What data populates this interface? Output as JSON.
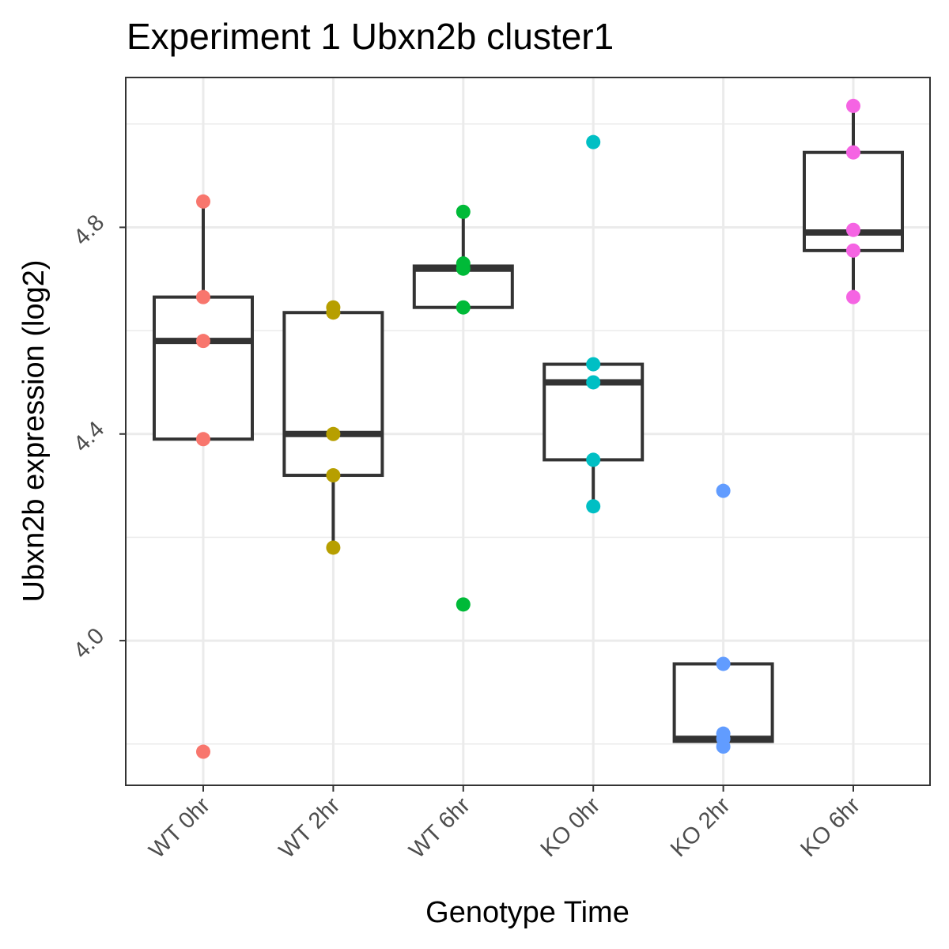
{
  "chart_data": {
    "type": "box",
    "title": "Experiment 1 Ubxn2b cluster1",
    "xlabel": "Genotype Time",
    "ylabel": "Ubxn2b expression (log2)",
    "categories": [
      "WT 0hr",
      "WT 2hr",
      "WT 6hr",
      "KO 0hr",
      "KO 2hr",
      "KO 6hr"
    ],
    "ylim": [
      3.72,
      5.09
    ],
    "y_ticks": [
      4.0,
      4.4,
      4.8
    ],
    "y_tick_labels": [
      "4.0",
      "4.4",
      "4.8"
    ],
    "y_minor_ticks": [
      3.8,
      4.2,
      4.6,
      5.0
    ],
    "grid": true,
    "colors": [
      "#F8766D",
      "#B79F00",
      "#00BA38",
      "#00BFC4",
      "#619CFF",
      "#F564E3"
    ],
    "boxes": [
      {
        "category": "WT 0hr",
        "lower_whisker": 4.39,
        "q1": 4.39,
        "median": 4.58,
        "q3": 4.665,
        "upper_whisker": 4.85,
        "outliers": [
          3.785
        ]
      },
      {
        "category": "WT 2hr",
        "lower_whisker": 4.18,
        "q1": 4.32,
        "median": 4.4,
        "q3": 4.635,
        "upper_whisker": 4.645,
        "outliers": []
      },
      {
        "category": "WT 6hr",
        "lower_whisker": 4.645,
        "q1": 4.645,
        "median": 4.72,
        "q3": 4.725,
        "upper_whisker": 4.83,
        "outliers": [
          4.07
        ]
      },
      {
        "category": "KO 0hr",
        "lower_whisker": 4.26,
        "q1": 4.35,
        "median": 4.5,
        "q3": 4.535,
        "upper_whisker": 4.535,
        "outliers": [
          4.965
        ]
      },
      {
        "category": "KO 2hr",
        "lower_whisker": 3.805,
        "q1": 3.805,
        "median": 3.81,
        "q3": 3.955,
        "upper_whisker": 3.955,
        "outliers": [
          4.29
        ]
      },
      {
        "category": "KO 6hr",
        "lower_whisker": 4.665,
        "q1": 4.755,
        "median": 4.79,
        "q3": 4.945,
        "upper_whisker": 5.035,
        "outliers": []
      }
    ],
    "points": [
      {
        "category": "WT 0hr",
        "values": [
          4.85,
          4.665,
          4.58,
          4.39,
          3.785
        ]
      },
      {
        "category": "WT 2hr",
        "values": [
          4.645,
          4.635,
          4.4,
          4.32,
          4.18
        ]
      },
      {
        "category": "WT 6hr",
        "values": [
          4.83,
          4.73,
          4.72,
          4.645,
          4.07
        ]
      },
      {
        "category": "KO 0hr",
        "values": [
          4.965,
          4.535,
          4.5,
          4.35,
          4.26
        ]
      },
      {
        "category": "KO 2hr",
        "values": [
          4.29,
          3.955,
          3.82,
          3.81,
          3.795
        ]
      },
      {
        "category": "KO 6hr",
        "values": [
          5.035,
          4.945,
          4.795,
          4.755,
          4.665
        ]
      }
    ]
  }
}
